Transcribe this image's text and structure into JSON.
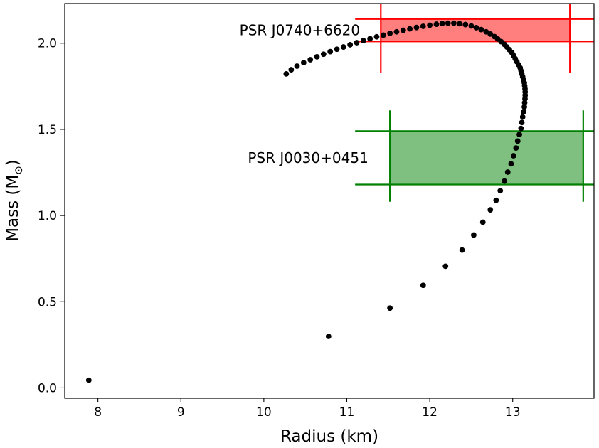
{
  "chart_data": {
    "type": "scatter",
    "xlabel": "Radius (km)",
    "ylabel": "Mass (M",
    "ylabel_sub": "⊙",
    "ylabel_close": ")",
    "xlim": [
      7.6,
      13.98
    ],
    "ylim": [
      -0.06,
      2.23
    ],
    "xticks": [
      8,
      9,
      10,
      11,
      12,
      13
    ],
    "xtick_labels": [
      "8",
      "9",
      "10",
      "11",
      "12",
      "13"
    ],
    "yticks": [
      0.0,
      0.5,
      1.0,
      1.5,
      2.0
    ],
    "ytick_labels": [
      "0.0",
      "0.5",
      "1.0",
      "1.5",
      "2.0"
    ],
    "grid": false,
    "point_color": "#000000",
    "series": [
      {
        "points": [
          [
            7.89,
            0.044
          ],
          [
            10.78,
            0.299
          ],
          [
            11.52,
            0.463
          ],
          [
            11.92,
            0.595
          ],
          [
            12.19,
            0.706
          ],
          [
            12.39,
            0.8
          ],
          [
            12.53,
            0.887
          ],
          [
            12.64,
            0.961
          ],
          [
            12.73,
            1.033
          ],
          [
            12.8,
            1.088
          ],
          [
            12.85,
            1.144
          ],
          [
            12.9,
            1.2
          ],
          [
            12.94,
            1.252
          ],
          [
            12.98,
            1.3
          ],
          [
            13.01,
            1.347
          ],
          [
            13.04,
            1.392
          ],
          [
            13.06,
            1.432
          ],
          [
            13.08,
            1.47
          ],
          [
            13.1,
            1.505
          ],
          [
            13.11,
            1.54
          ],
          [
            13.12,
            1.572
          ],
          [
            13.13,
            1.602
          ],
          [
            13.14,
            1.63
          ],
          [
            13.144,
            1.655
          ],
          [
            13.148,
            1.677
          ],
          [
            13.15,
            1.698
          ],
          [
            13.15,
            1.717
          ],
          [
            13.148,
            1.735
          ],
          [
            13.144,
            1.753
          ],
          [
            13.14,
            1.77
          ],
          [
            13.13,
            1.787
          ],
          [
            13.12,
            1.805
          ],
          [
            13.11,
            1.822
          ],
          [
            13.1,
            1.84
          ],
          [
            13.09,
            1.857
          ],
          [
            13.07,
            1.875
          ],
          [
            13.05,
            1.892
          ],
          [
            13.03,
            1.91
          ],
          [
            13.01,
            1.928
          ],
          [
            12.99,
            1.945
          ],
          [
            12.96,
            1.962
          ],
          [
            12.93,
            1.978
          ],
          [
            12.9,
            1.993
          ],
          [
            12.86,
            2.009
          ],
          [
            12.82,
            2.024
          ],
          [
            12.78,
            2.038
          ],
          [
            12.73,
            2.053
          ],
          [
            12.68,
            2.066
          ],
          [
            12.62,
            2.079
          ],
          [
            12.56,
            2.09
          ],
          [
            12.5,
            2.1
          ],
          [
            12.43,
            2.108
          ],
          [
            12.36,
            2.113
          ],
          [
            12.29,
            2.116
          ],
          [
            12.22,
            2.116
          ],
          [
            12.15,
            2.114
          ],
          [
            12.08,
            2.11
          ],
          [
            12.0,
            2.104
          ],
          [
            11.92,
            2.098
          ],
          [
            11.84,
            2.091
          ],
          [
            11.76,
            2.083
          ],
          [
            11.68,
            2.075
          ],
          [
            11.6,
            2.066
          ],
          [
            11.52,
            2.057
          ],
          [
            11.44,
            2.047
          ],
          [
            11.36,
            2.037
          ],
          [
            11.28,
            2.026
          ],
          [
            11.2,
            2.015
          ],
          [
            11.12,
            2.003
          ],
          [
            11.04,
            1.991
          ],
          [
            10.96,
            1.978
          ],
          [
            10.88,
            1.965
          ],
          [
            10.8,
            1.951
          ],
          [
            10.72,
            1.936
          ],
          [
            10.64,
            1.921
          ],
          [
            10.56,
            1.904
          ],
          [
            10.48,
            1.887
          ],
          [
            10.4,
            1.867
          ],
          [
            10.33,
            1.846
          ],
          [
            10.27,
            1.822
          ]
        ]
      }
    ],
    "bands": [
      {
        "label": "PSR J0740+6620",
        "color": "#ff0000",
        "fill": "#ff7f7f",
        "x_range": [
          11.41,
          13.69
        ],
        "y_range": [
          2.01,
          2.14
        ],
        "x_extent": [
          11.1,
          13.98
        ],
        "y_extent": [
          1.83,
          2.23
        ],
        "label_at": [
          11.16,
          2.075
        ]
      },
      {
        "label": "PSR J0030+0451",
        "color": "#008000",
        "fill": "#7fbf7f",
        "x_range": [
          11.52,
          13.85
        ],
        "y_range": [
          1.18,
          1.49
        ],
        "x_extent": [
          11.1,
          13.98
        ],
        "y_extent": [
          1.08,
          1.61
        ],
        "label_at": [
          11.26,
          1.335
        ]
      }
    ]
  }
}
